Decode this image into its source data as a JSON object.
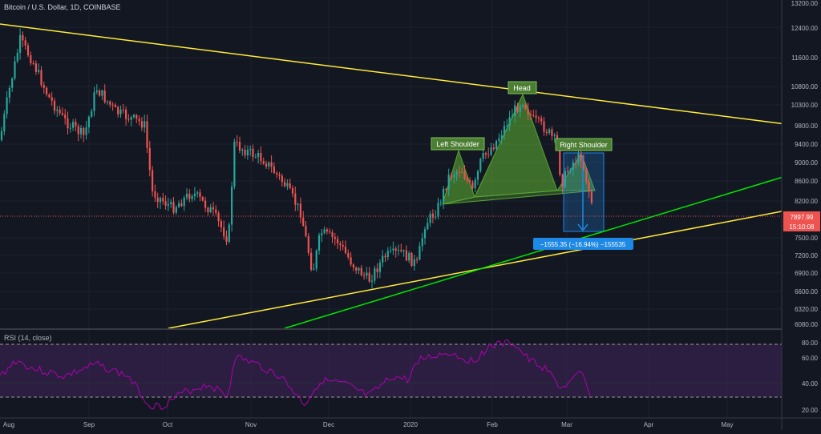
{
  "symbol_title": "Bitcoin / U.S. Dollar, 1D, COINBASE",
  "rsi_title": "RSI (14, close)",
  "price_scale": [
    "13200.00",
    "12400.00",
    "11600.00",
    "10800.00",
    "10300.00",
    "9800.00",
    "9400.00",
    "9000.00",
    "8600.00",
    "8200.00",
    "7500.00",
    "7200.00",
    "6900.00",
    "6600.00",
    "6320.00",
    "6080.00"
  ],
  "rsi_scale": [
    "80.00",
    "60.00",
    "40.00",
    "20.00"
  ],
  "time_axis": [
    "Aug",
    "Sep",
    "Oct",
    "Nov",
    "Dec",
    "2020",
    "Feb",
    "Mar",
    "Apr",
    "May"
  ],
  "last_price": "7897.99",
  "countdown": "15:10:08",
  "measure_label": "−1555.35 (−16.94%) −155535",
  "patterns": {
    "left": "Left Shoulder",
    "head": "Head",
    "right": "Right Shoulder"
  },
  "colors": {
    "background": "#131722",
    "bull_candle": "#26a69a",
    "bear_candle": "#ef5350",
    "trendline_yellow": "#ffeb3b",
    "trendline_green": "#00e600",
    "rsi_line": "#b000b0",
    "rsi_band": "#3f2459",
    "pattern_fill": "#5aa632",
    "last_price_badge": "#ef5350",
    "measure_badge": "#1e88e5"
  },
  "icons": {
    "measure_tool": "measure-range-icon"
  }
}
